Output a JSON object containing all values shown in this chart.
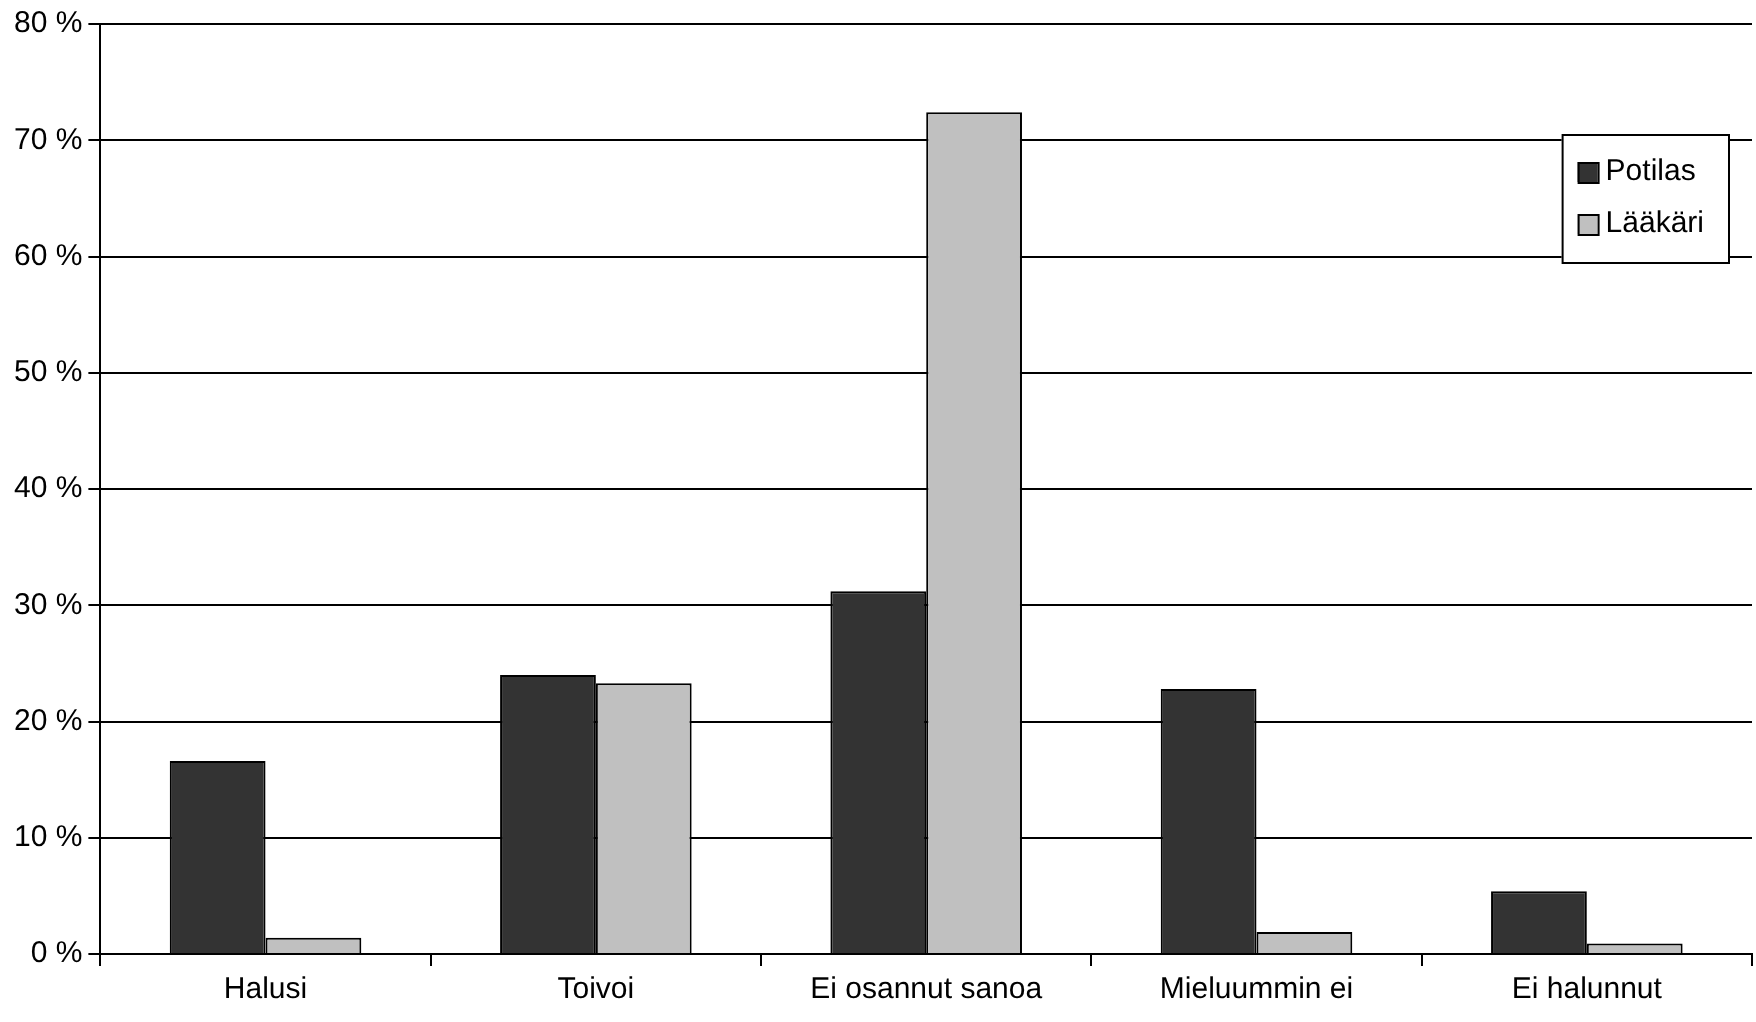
{
  "chart_data": {
    "type": "bar",
    "categories": [
      "Halusi",
      "Toivoi",
      "Ei osannut sanoa",
      "Mieluummin ei",
      "Ei halunnut"
    ],
    "series": [
      {
        "name": "Potilas",
        "color": "#333333",
        "values": [
          16.6,
          24,
          31.2,
          22.8,
          5.4
        ]
      },
      {
        "name": "Lääkäri",
        "color": "#c0c0c0",
        "values": [
          1.4,
          23.3,
          72.4,
          1.9,
          0.9
        ]
      }
    ],
    "ylim": [
      0,
      80
    ],
    "yticks": [
      {
        "value": 0,
        "label": "0 %"
      },
      {
        "value": 10,
        "label": "10 %"
      },
      {
        "value": 20,
        "label": "20 %"
      },
      {
        "value": 30,
        "label": "30 %"
      },
      {
        "value": 40,
        "label": "40 %"
      },
      {
        "value": 50,
        "label": "50 %"
      },
      {
        "value": 60,
        "label": "60 %"
      },
      {
        "value": 70,
        "label": "70 %"
      },
      {
        "value": 80,
        "label": "80 %"
      }
    ],
    "grid": "y",
    "legend": "top right"
  }
}
